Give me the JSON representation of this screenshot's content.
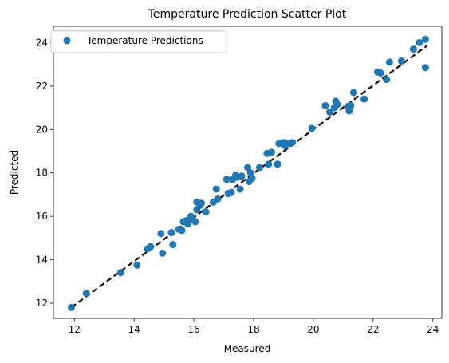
{
  "chart_data": {
    "type": "scatter",
    "title": "Temperature Prediction Scatter Plot",
    "xlabel": "Measured",
    "ylabel": "Predicted",
    "xlim": [
      11.3,
      24.3
    ],
    "ylim": [
      11.3,
      24.75
    ],
    "xticks": [
      12,
      14,
      16,
      18,
      20,
      22,
      24
    ],
    "yticks": [
      12,
      14,
      16,
      18,
      20,
      22,
      24
    ],
    "grid": false,
    "legend_position": "upper-left",
    "series": [
      {
        "name": "Temperature Predictions",
        "color": "#1f77b4",
        "points": [
          [
            11.9,
            11.8
          ],
          [
            12.4,
            12.45
          ],
          [
            13.55,
            13.4
          ],
          [
            14.1,
            13.75
          ],
          [
            14.45,
            14.5
          ],
          [
            14.55,
            14.6
          ],
          [
            14.9,
            15.2
          ],
          [
            14.95,
            14.3
          ],
          [
            15.25,
            15.25
          ],
          [
            15.3,
            14.7
          ],
          [
            15.5,
            15.4
          ],
          [
            15.6,
            15.35
          ],
          [
            15.65,
            15.75
          ],
          [
            15.75,
            15.8
          ],
          [
            15.8,
            15.65
          ],
          [
            15.9,
            16.0
          ],
          [
            15.95,
            15.85
          ],
          [
            16.05,
            15.75
          ],
          [
            16.1,
            16.3
          ],
          [
            16.1,
            16.65
          ],
          [
            16.2,
            16.5
          ],
          [
            16.25,
            16.6
          ],
          [
            16.4,
            16.2
          ],
          [
            16.65,
            16.65
          ],
          [
            16.75,
            17.25
          ],
          [
            16.8,
            16.8
          ],
          [
            17.1,
            17.7
          ],
          [
            17.15,
            17.05
          ],
          [
            17.25,
            17.1
          ],
          [
            17.3,
            17.7
          ],
          [
            17.4,
            17.9
          ],
          [
            17.45,
            17.8
          ],
          [
            17.55,
            17.25
          ],
          [
            17.6,
            17.85
          ],
          [
            17.8,
            18.25
          ],
          [
            17.85,
            17.6
          ],
          [
            17.9,
            18.0
          ],
          [
            17.95,
            17.75
          ],
          [
            18.2,
            18.25
          ],
          [
            18.45,
            18.9
          ],
          [
            18.5,
            18.4
          ],
          [
            18.6,
            18.95
          ],
          [
            18.8,
            18.4
          ],
          [
            18.85,
            19.35
          ],
          [
            19.0,
            19.4
          ],
          [
            19.05,
            19.25
          ],
          [
            19.15,
            19.35
          ],
          [
            19.3,
            19.4
          ],
          [
            19.95,
            20.05
          ],
          [
            20.4,
            21.1
          ],
          [
            20.55,
            20.8
          ],
          [
            20.7,
            21.0
          ],
          [
            20.75,
            21.3
          ],
          [
            20.8,
            21.15
          ],
          [
            21.15,
            21.05
          ],
          [
            21.2,
            20.85
          ],
          [
            21.25,
            21.1
          ],
          [
            21.35,
            21.7
          ],
          [
            21.7,
            21.4
          ],
          [
            22.15,
            22.65
          ],
          [
            22.25,
            22.6
          ],
          [
            22.45,
            22.3
          ],
          [
            22.55,
            23.1
          ],
          [
            22.95,
            23.15
          ],
          [
            23.35,
            23.7
          ],
          [
            23.55,
            24.0
          ],
          [
            23.75,
            24.15
          ],
          [
            23.75,
            22.85
          ]
        ]
      }
    ],
    "reference_line": {
      "from": [
        11.9,
        11.8
      ],
      "to": [
        23.8,
        23.85
      ],
      "style": "dashed",
      "color": "#000000"
    }
  }
}
